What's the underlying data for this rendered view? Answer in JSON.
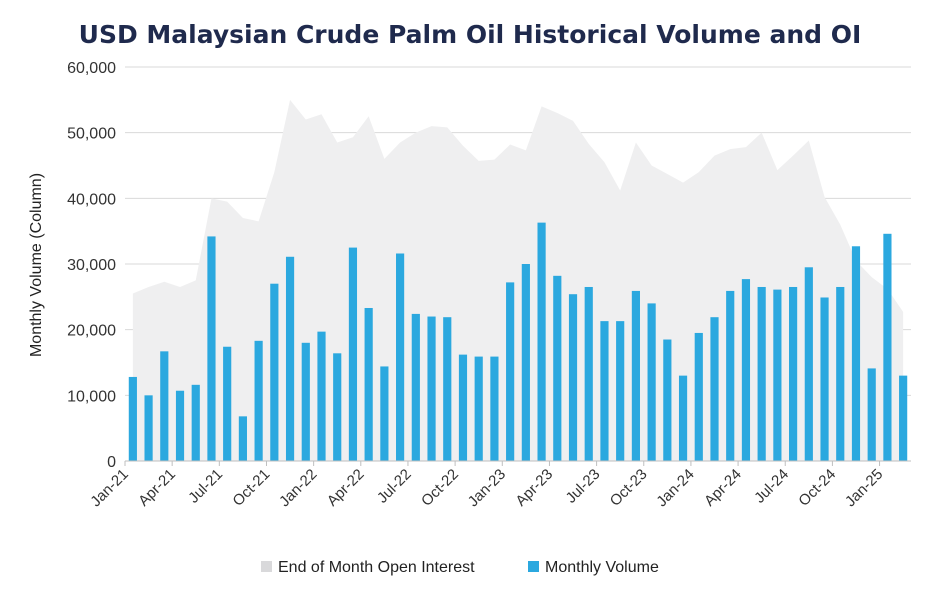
{
  "chart_data": {
    "type": "bar",
    "title": "USD Malaysian Crude Palm Oil Historical Volume and OI",
    "xlabel": "",
    "ylabel": "Monthly Volume (Column)",
    "ylim": [
      0,
      60000
    ],
    "yticks": [
      0,
      10000,
      20000,
      30000,
      40000,
      50000,
      60000
    ],
    "ytick_labels": [
      "0",
      "10,000",
      "20,000",
      "30,000",
      "40,000",
      "50,000",
      "60,000"
    ],
    "grid": true,
    "legend_position": "bottom-center",
    "categories": [
      "Jan-21",
      "Feb-21",
      "Mar-21",
      "Apr-21",
      "May-21",
      "Jun-21",
      "Jul-21",
      "Aug-21",
      "Sep-21",
      "Oct-21",
      "Nov-21",
      "Dec-21",
      "Jan-22",
      "Feb-22",
      "Mar-22",
      "Apr-22",
      "May-22",
      "Jun-22",
      "Jul-22",
      "Aug-22",
      "Sep-22",
      "Oct-22",
      "Nov-22",
      "Dec-22",
      "Jan-23",
      "Feb-23",
      "Mar-23",
      "Apr-23",
      "May-23",
      "Jun-23",
      "Jul-23",
      "Aug-23",
      "Sep-23",
      "Oct-23",
      "Nov-23",
      "Dec-23",
      "Jan-24",
      "Feb-24",
      "Mar-24",
      "Apr-24",
      "May-24",
      "Jun-24",
      "Jul-24",
      "Aug-24",
      "Sep-24",
      "Oct-24",
      "Nov-24",
      "Dec-24",
      "Jan-25",
      "Feb-25"
    ],
    "xtick_labels": [
      "Jan-21",
      "Apr-21",
      "Jul-21",
      "Oct-21",
      "Jan-22",
      "Apr-22",
      "Jul-22",
      "Oct-22",
      "Jan-23",
      "Apr-23",
      "Jul-23",
      "Oct-23",
      "Jan-24",
      "Apr-24",
      "Jul-24",
      "Oct-24",
      "Jan-25"
    ],
    "xtick_index": [
      0,
      3,
      6,
      9,
      12,
      15,
      18,
      21,
      24,
      27,
      30,
      33,
      36,
      39,
      42,
      45,
      48
    ],
    "series": [
      {
        "name": "End of Month Open Interest",
        "type": "area",
        "color": "#efeff0",
        "values": [
          25500,
          26500,
          27300,
          26500,
          27500,
          40000,
          39500,
          37000,
          36500,
          44000,
          55000,
          52000,
          52800,
          48500,
          49300,
          52500,
          46000,
          48500,
          50000,
          51000,
          50800,
          48000,
          45700,
          45900,
          48200,
          47300,
          54000,
          53000,
          51800,
          48300,
          45500,
          41200,
          48500,
          45000,
          43700,
          42400,
          44000,
          46500,
          47500,
          47800,
          50000,
          44300,
          46500,
          48800,
          40200,
          36000,
          30500,
          28000,
          26200,
          22700
        ]
      },
      {
        "name": "Monthly Volume",
        "type": "bar",
        "color": "#2ba8df",
        "values": [
          12800,
          10000,
          16700,
          10700,
          11600,
          34200,
          17400,
          6800,
          18300,
          27000,
          31100,
          18000,
          19700,
          16400,
          32500,
          23300,
          14400,
          31600,
          22400,
          22000,
          21900,
          16200,
          15900,
          15900,
          27200,
          30000,
          36300,
          28200,
          25400,
          26500,
          21300,
          21300,
          25900,
          24000,
          18500,
          13000,
          19500,
          21900,
          25900,
          27700,
          26500,
          26100,
          26500,
          29500,
          24900,
          26500,
          32700,
          14100,
          34600,
          13000
        ]
      }
    ]
  },
  "legend": {
    "oi_label": "End of Month Open Interest",
    "volume_label": "Monthly Volume"
  }
}
